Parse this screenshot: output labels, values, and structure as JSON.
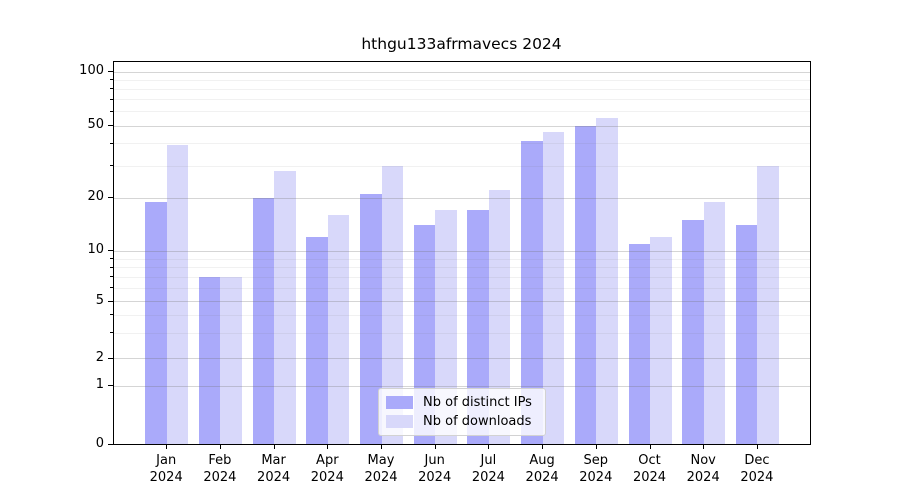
{
  "chart_data": {
    "type": "bar",
    "title": "hthgu133afrmavecs 2024",
    "categories": [
      "Jan",
      "Feb",
      "Mar",
      "Apr",
      "May",
      "Jun",
      "Jul",
      "Aug",
      "Sep",
      "Oct",
      "Nov",
      "Dec"
    ],
    "year_label": "2024",
    "series": [
      {
        "name": "Nb of distinct IPs",
        "color": "#aaaafa",
        "values": [
          19,
          7,
          20,
          12,
          21,
          14,
          17,
          41,
          50,
          11,
          15,
          14
        ]
      },
      {
        "name": "Nb of downloads",
        "color": "#d8d8fa",
        "values": [
          39,
          7,
          28,
          16,
          30,
          17,
          22,
          46,
          55,
          12,
          19,
          30
        ]
      }
    ],
    "ylabel": "",
    "xlabel": "",
    "ylim": [
      0,
      100
    ],
    "yticks": [
      0,
      1,
      2,
      5,
      10,
      20,
      50,
      100
    ],
    "minor_yticks": [
      3,
      4,
      6,
      7,
      8,
      9,
      30,
      40,
      60,
      70,
      80,
      90
    ],
    "scale": "log-like",
    "grid": "on",
    "legend_position": "bottom-center",
    "axis_color": "#000000",
    "background_color": "#ffffff"
  }
}
